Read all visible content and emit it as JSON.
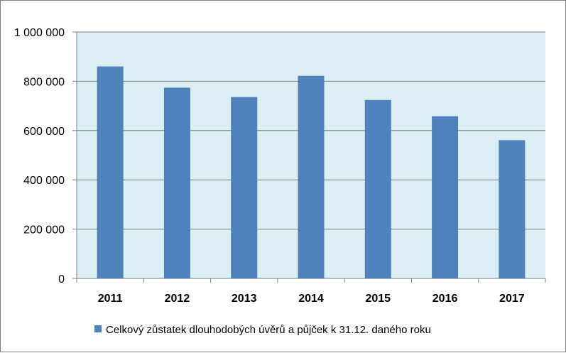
{
  "chart_data": {
    "type": "bar",
    "title": "",
    "xlabel": "",
    "ylabel": "",
    "categories": [
      "2011",
      "2012",
      "2013",
      "2014",
      "2015",
      "2016",
      "2017"
    ],
    "series": [
      {
        "name": "Celkový zůstatek dlouhodobých úvěrů a půjček  k 31.12. daného roku",
        "values": [
          860000,
          774000,
          736000,
          822000,
          724000,
          658000,
          561000
        ]
      }
    ],
    "ylim": [
      0,
      1000000
    ],
    "yticks": [
      0,
      200000,
      400000,
      600000,
      800000,
      1000000
    ],
    "ytick_labels": [
      "0",
      "200 000",
      "400 000",
      "600 000",
      "800 000",
      "1 000 000"
    ],
    "grid": true,
    "legend_position": "bottom",
    "colors": {
      "bar": "#4f81bd",
      "plot_background": "#dbeef4",
      "gridline": "#7f7f7f",
      "axis": "#808080"
    }
  }
}
